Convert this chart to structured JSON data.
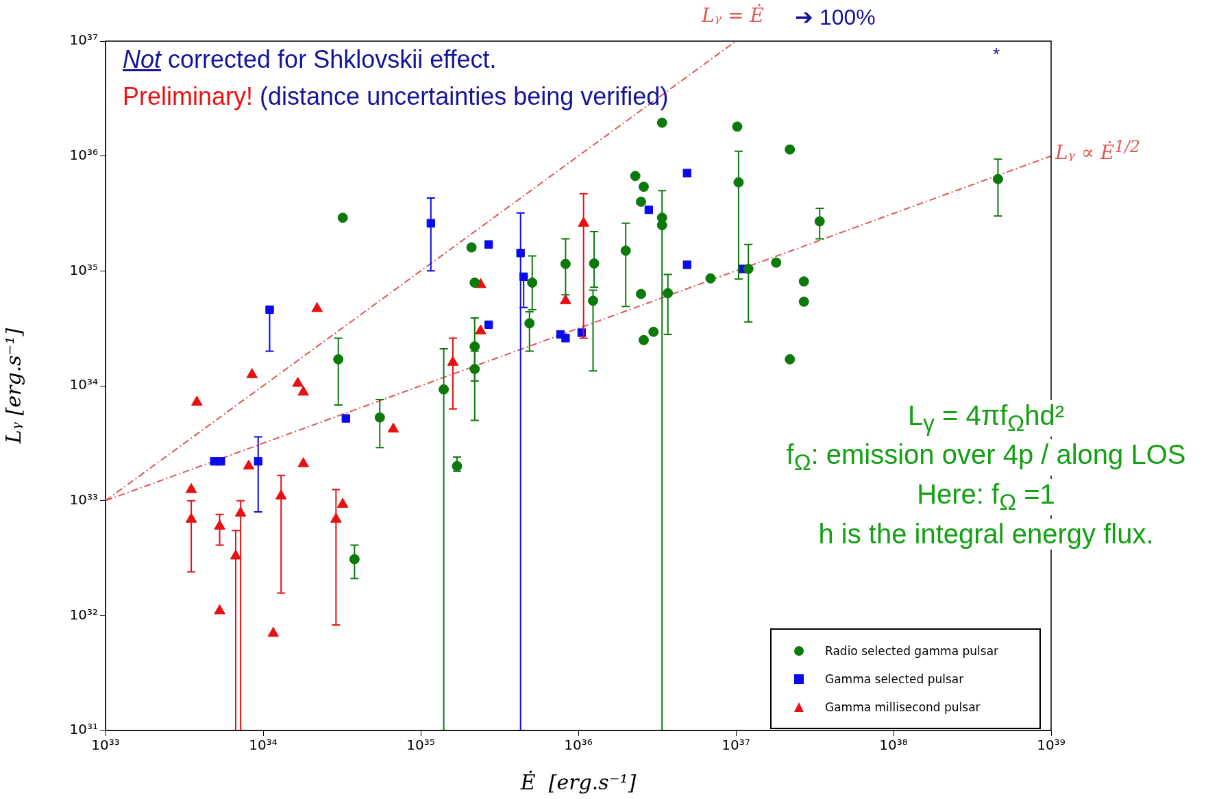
{
  "chart_data": {
    "type": "scatter",
    "log": "xy",
    "legend": "bottom right",
    "xlabel": "Ė  [erg.s⁻¹]",
    "ylabel": "Lᵧ [erg.s⁻¹]",
    "xlim": [
      1e+33,
      1e+39
    ],
    "ylim": [
      1e+31,
      1e+37
    ],
    "xticks": [
      {
        "value": 1e+33,
        "label": "10³³"
      },
      {
        "value": 1e+34,
        "label": "10³⁴"
      },
      {
        "value": 1e+35,
        "label": "10³⁵"
      },
      {
        "value": 1e+36,
        "label": "10³⁶"
      },
      {
        "value": 1e+37,
        "label": "10³⁷"
      },
      {
        "value": 1e+38,
        "label": "10³⁸"
      },
      {
        "value": 1e+39,
        "label": "10³⁹"
      }
    ],
    "yticks": [
      {
        "value": 1e+31,
        "label": "10³¹"
      },
      {
        "value": 1e+32,
        "label": "10³²"
      },
      {
        "value": 1e+33,
        "label": "10³³"
      },
      {
        "value": 1e+34,
        "label": "10³⁴"
      },
      {
        "value": 1e+35,
        "label": "10³⁵"
      },
      {
        "value": 1e+36,
        "label": "10³⁶"
      },
      {
        "value": 1e+37,
        "label": "10³⁷"
      }
    ],
    "annotations": [
      "Not",
      "corrected for Shklovskii effect.",
      "Preliminary!",
      "(distance uncertainties being verified)",
      "*",
      "➔ 100%",
      "L$_{γ}$ = 4πf$_{Ω}$hd²",
      "f$_{Ω}$: emission over 4p / along LOS",
      "Here: f$_{Ω}$ =1",
      "h is the integral energy flux."
    ],
    "series": [
      {
        "name": "Radio selected gamma pulsar",
        "type": "scatter",
        "marker": "circle",
        "color": "#0b7a0b",
        "x": [
          3.2e+34,
          3e+34,
          5.5e+34,
          3.8e+34,
          1.4e+35,
          1.7e+35,
          2.1e+35,
          2.2e+35,
          2.2e+35,
          2.2e+35,
          4.9e+35,
          5.1e+35,
          8.3e+35,
          1.24e+36,
          1.26e+36,
          2e+36,
          2.3e+36,
          2.6e+36,
          2.5e+36,
          2.5e+36,
          2.6e+36,
          3e+36,
          3.4e+36,
          3.4e+36,
          3.4e+36,
          3.7e+36,
          6.9e+36,
          1.02e+37,
          1.04e+37,
          1.2e+37,
          1.8e+37,
          2.2e+37,
          2.2e+37,
          2.7e+37,
          2.7e+37,
          3.4e+37,
          4.6e+38
        ],
        "values": [
          2.9e+35,
          1.7e+34,
          5.3e+33,
          3.1e+32,
          9.3e+33,
          2e+33,
          1.6e+35,
          1.4e+34,
          2.2e+34,
          7.9e+34,
          3.5e+34,
          7.9e+34,
          1.15e+35,
          5.5e+34,
          1.16e+35,
          1.5e+35,
          6.7e+35,
          5.4e+35,
          4e+35,
          6.3e+34,
          2.5e+34,
          2.95e+34,
          1.95e+36,
          2.9e+35,
          2.5e+35,
          6.4e+34,
          8.6e+34,
          1.8e+36,
          5.9e+35,
          1.04e+35,
          1.18e+35,
          1.14e+36,
          1.7e+34,
          8.1e+34,
          5.4e+34,
          2.7e+35,
          6.3e+35
        ],
        "errors": [
          null,
          [
            6.8e+33,
            2.6e+34
          ],
          [
            2.9e+33,
            7.6e+33
          ],
          [
            2.1e+32,
            4.1e+32
          ],
          [
            1e+31,
            2.1e+34
          ],
          [
            1.8e+33,
            2.4e+33
          ],
          null,
          [
            1.1e+34,
            2e+34
          ],
          [
            5e+33,
            3.9e+34
          ],
          null,
          [
            2e+34,
            4.4e+34
          ],
          [
            4.6e+34,
            1.35e+35
          ],
          [
            6.2e+34,
            1.9e+35
          ],
          [
            1.35e+34,
            6.8e+34
          ],
          [
            7.2e+34,
            2.2e+35
          ],
          [
            4.9e+34,
            2.6e+35
          ],
          null,
          null,
          null,
          null,
          null,
          null,
          null,
          [
            1e+31,
            5e+35
          ],
          null,
          [
            2.8e+34,
            9.3e+34
          ],
          null,
          null,
          [
            8.5e+34,
            1.1e+36
          ],
          [
            3.6e+34,
            1.7e+35
          ],
          null,
          null,
          null,
          null,
          null,
          [
            1.9e+35,
            3.5e+35
          ],
          [
            3e+35,
            9.4e+35
          ]
        ]
      },
      {
        "name": "Gamma selected pulsar",
        "type": "scatter",
        "marker": "square",
        "color": "#0a0aee",
        "x": [
          1.1e+34,
          4.9e+33,
          5.4e+33,
          9.3e+33,
          3.35e+34,
          1.16e+35,
          2.7e+35,
          2.7e+35,
          4.3e+35,
          4.5e+35,
          7.7e+35,
          8.3e+35,
          1.05e+36,
          2.8e+36,
          4.9e+36,
          4.9e+36,
          1.1e+37
        ],
        "values": [
          4.6e+34,
          2.2e+33,
          2.2e+33,
          2.2e+33,
          5.2e+33,
          2.6e+35,
          1.7e+35,
          3.4e+34,
          1.43e+35,
          8.9e+34,
          2.8e+34,
          2.6e+34,
          2.9e+34,
          3.4e+35,
          7.1e+35,
          1.13e+35,
          1.04e+35
        ],
        "errors": [
          [
            2e+34,
            4.6e+34
          ],
          null,
          null,
          [
            8e+32,
            3.6e+33
          ],
          null,
          [
            1e+35,
            4.3e+35
          ],
          null,
          null,
          [
            1e+31,
            3.2e+35
          ],
          [
            4.8e+34,
            8.9e+34
          ],
          null,
          null,
          null,
          null,
          null,
          null,
          null
        ]
      },
      {
        "name": "Gamma millisecond pulsar",
        "type": "scatter",
        "marker": "triangle",
        "color": "#e81010",
        "x": [
          3.8e+33,
          3.5e+33,
          3.5e+33,
          5.3e+33,
          5.3e+33,
          6.7e+33,
          7.2e+33,
          8.1e+33,
          8.5e+33,
          1.16e+34,
          1.3e+34,
          1.66e+34,
          1.8e+34,
          1.8e+34,
          2.2e+34,
          2.9e+34,
          3.2e+34,
          6.7e+34,
          1.6e+35,
          2.4e+35,
          2.4e+35,
          8.3e+35,
          1.08e+36
        ],
        "values": [
          7.2e+33,
          1.25e+33,
          6.9e+32,
          6e+32,
          1.1e+32,
          3.3e+32,
          7.8e+32,
          2e+33,
          1.25e+34,
          7e+31,
          1.1e+33,
          1.05e+34,
          8.8e+33,
          2.1e+33,
          4.7e+34,
          6.9e+32,
          9.3e+32,
          4.2e+33,
          1.6e+34,
          7.6e+34,
          3e+34,
          5.5e+34,
          2.6e+35
        ],
        "errors": [
          null,
          null,
          [
            2.4e+32,
            1e+33
          ],
          [
            4.1e+32,
            7.6e+32
          ],
          null,
          [
            1e+31,
            5.5e+32
          ],
          [
            1e+31,
            1e+33
          ],
          null,
          null,
          null,
          [
            1.57e+32,
            1.66e+33
          ],
          null,
          null,
          null,
          null,
          [
            8.3e+31,
            1.25e+33
          ],
          null,
          null,
          [
            6.3e+33,
            2.6e+34
          ],
          null,
          null,
          null,
          [
            2.6e+34,
            4.7e+35
          ]
        ]
      },
      {
        "name": "Lᵧ = Ė",
        "type": "line",
        "marker": "none",
        "line_style": "dashed",
        "color": "#e05555",
        "x": [
          1e+33,
          1e+37
        ],
        "values": [
          1e+33,
          1e+37
        ]
      },
      {
        "name": "Lᵧ ∝ Ė$^{1/2}$",
        "type": "line",
        "marker": "none",
        "line_style": "dashed",
        "color": "#e05555",
        "x": [
          1e+33,
          1e+39
        ],
        "values": [
          1e+33,
          1e+36
        ]
      }
    ]
  }
}
